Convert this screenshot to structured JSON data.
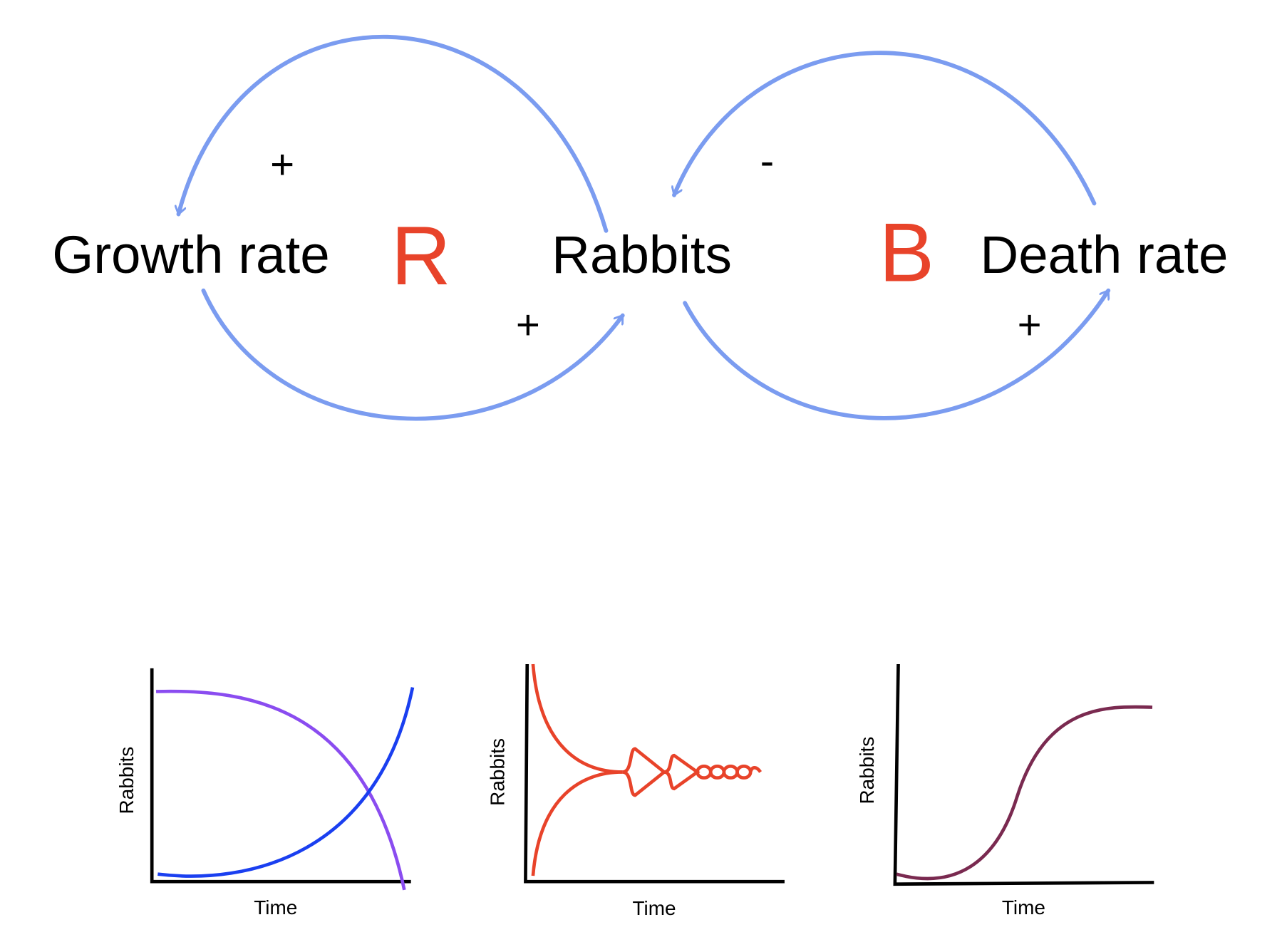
{
  "nodes": [
    {
      "label": "Growth rate"
    },
    {
      "label": "Rabbits"
    },
    {
      "label": "Death rate"
    }
  ],
  "loops": [
    {
      "label": "R"
    },
    {
      "label": "B"
    }
  ],
  "links": [
    {
      "sign": "+"
    },
    {
      "sign": "+"
    },
    {
      "sign": "-"
    },
    {
      "sign": "+"
    }
  ],
  "charts": [
    {
      "x_label": "Time",
      "y_label": "Rabbits"
    },
    {
      "x_label": "Time",
      "y_label": "Rabbits"
    },
    {
      "x_label": "Time",
      "y_label": "Rabbits"
    }
  ]
}
